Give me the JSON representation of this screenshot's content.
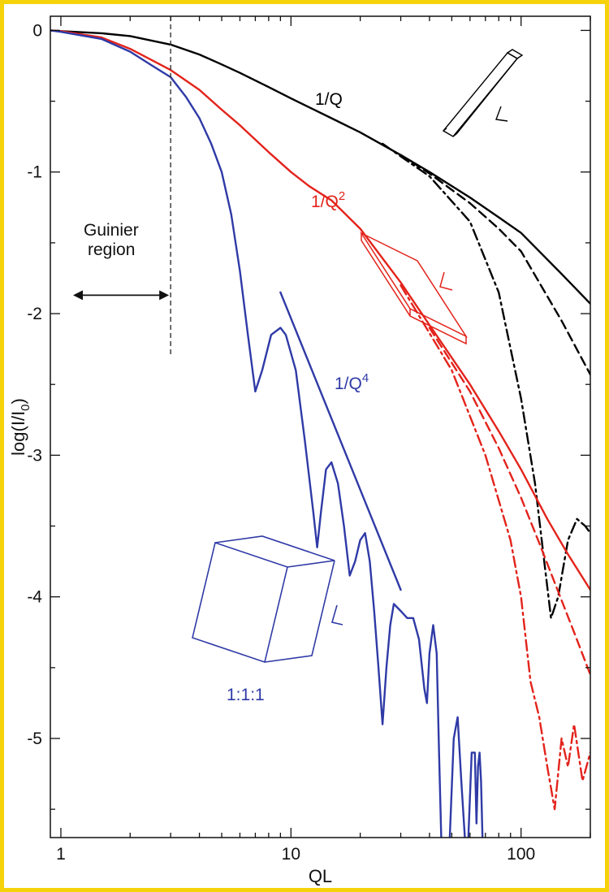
{
  "chart_data": {
    "type": "line",
    "xlabel": "QL",
    "ylabel_main": "log(I/I",
    "ylabel_sub": "0",
    "ylabel_close": ")",
    "xscale": "log",
    "xlim": [
      0.9,
      200
    ],
    "ylim": [
      -5.7,
      0.1
    ],
    "x_ticks": [
      1,
      10,
      100
    ],
    "x_tick_labels": [
      "1",
      "10",
      "100"
    ],
    "y_ticks": [
      0,
      -1,
      -2,
      -3,
      -4,
      -5
    ],
    "y_tick_labels": [
      "0",
      "-1",
      "-2",
      "-3",
      "-4",
      "-5"
    ],
    "grid": false,
    "guinier_cutoff_x": 3,
    "annotations": {
      "guinier_line1": "Guinier",
      "guinier_line2": "region",
      "q1": "1/Q",
      "q2": "1/Q",
      "q2_sup": "2",
      "q4": "1/Q",
      "q4_sup": "4",
      "cube_ratio": "1:1:1",
      "length_symbol": "L"
    },
    "colors": {
      "rod": "#000000",
      "plate": "#e3231b",
      "cube": "#2f3aa6",
      "frame": "#f5d20a"
    },
    "series": [
      {
        "color": "#000000",
        "dash": "solid",
        "points": [
          [
            0.9,
            0
          ],
          [
            1,
            -0.005
          ],
          [
            1.5,
            -0.02
          ],
          [
            2,
            -0.04
          ],
          [
            3,
            -0.1
          ],
          [
            4,
            -0.17
          ],
          [
            5,
            -0.24
          ],
          [
            6,
            -0.3
          ],
          [
            8,
            -0.4
          ],
          [
            10,
            -0.48
          ],
          [
            15,
            -0.62
          ],
          [
            20,
            -0.72
          ],
          [
            30,
            -0.88
          ],
          [
            40,
            -1.0
          ],
          [
            60,
            -1.18
          ],
          [
            80,
            -1.32
          ],
          [
            100,
            -1.43
          ],
          [
            150,
            -1.72
          ],
          [
            200,
            -1.93
          ]
        ]
      },
      {
        "color": "#000000",
        "dash": "dash",
        "points": [
          [
            30,
            -0.88
          ],
          [
            40,
            -1.01
          ],
          [
            60,
            -1.22
          ],
          [
            80,
            -1.4
          ],
          [
            100,
            -1.56
          ],
          [
            150,
            -2.05
          ],
          [
            200,
            -2.43
          ]
        ]
      },
      {
        "color": "#000000",
        "dash": "dashdot",
        "points": [
          [
            25,
            -0.8
          ],
          [
            40,
            -1.03
          ],
          [
            60,
            -1.35
          ],
          [
            80,
            -1.85
          ],
          [
            100,
            -2.6
          ],
          [
            115,
            -3.2
          ],
          [
            125,
            -3.7
          ],
          [
            135,
            -4.15
          ],
          [
            145,
            -4.0
          ],
          [
            160,
            -3.6
          ],
          [
            175,
            -3.45
          ],
          [
            190,
            -3.5
          ],
          [
            200,
            -3.55
          ]
        ]
      },
      {
        "color": "#e3231b",
        "dash": "solid",
        "points": [
          [
            0.9,
            0
          ],
          [
            1,
            -0.005
          ],
          [
            1.5,
            -0.05
          ],
          [
            2,
            -0.13
          ],
          [
            3,
            -0.28
          ],
          [
            4,
            -0.42
          ],
          [
            5,
            -0.56
          ],
          [
            6,
            -0.67
          ],
          [
            8,
            -0.86
          ],
          [
            10,
            -1.0
          ],
          [
            12,
            -1.1
          ],
          [
            15,
            -1.2
          ],
          [
            20,
            -1.4
          ],
          [
            30,
            -1.78
          ],
          [
            40,
            -2.08
          ],
          [
            60,
            -2.5
          ],
          [
            80,
            -2.83
          ],
          [
            100,
            -3.1
          ],
          [
            130,
            -3.45
          ],
          [
            160,
            -3.7
          ],
          [
            200,
            -3.95
          ]
        ]
      },
      {
        "color": "#e3231b",
        "dash": "dash",
        "points": [
          [
            40,
            -2.1
          ],
          [
            60,
            -2.55
          ],
          [
            80,
            -2.95
          ],
          [
            100,
            -3.3
          ],
          [
            120,
            -3.62
          ],
          [
            140,
            -3.9
          ],
          [
            170,
            -4.25
          ],
          [
            200,
            -4.55
          ]
        ]
      },
      {
        "color": "#e3231b",
        "dash": "dashdot",
        "points": [
          [
            30,
            -1.8
          ],
          [
            50,
            -2.4
          ],
          [
            70,
            -3.0
          ],
          [
            90,
            -3.6
          ],
          [
            100,
            -4.0
          ],
          [
            110,
            -4.6
          ],
          [
            120,
            -4.85
          ],
          [
            130,
            -5.2
          ],
          [
            140,
            -5.5
          ],
          [
            150,
            -5.0
          ],
          [
            160,
            -5.2
          ],
          [
            170,
            -4.9
          ],
          [
            185,
            -5.3
          ],
          [
            200,
            -5.1
          ]
        ]
      },
      {
        "color": "#2f3aa6",
        "dash": "solid",
        "points": [
          [
            0.9,
            0
          ],
          [
            1,
            -0.01
          ],
          [
            1.5,
            -0.06
          ],
          [
            2,
            -0.15
          ],
          [
            2.5,
            -0.25
          ],
          [
            3,
            -0.33
          ],
          [
            3.5,
            -0.47
          ],
          [
            4,
            -0.62
          ],
          [
            4.5,
            -0.8
          ],
          [
            5,
            -1.0
          ],
          [
            5.5,
            -1.3
          ],
          [
            6,
            -1.7
          ],
          [
            6.5,
            -2.15
          ],
          [
            7,
            -2.55
          ],
          [
            7.5,
            -2.4
          ],
          [
            8.2,
            -2.15
          ],
          [
            9,
            -2.1
          ],
          [
            9.5,
            -2.15
          ],
          [
            10.5,
            -2.4
          ],
          [
            11.5,
            -2.9
          ],
          [
            12.5,
            -3.4
          ],
          [
            13,
            -3.65
          ],
          [
            13.5,
            -3.4
          ],
          [
            14.2,
            -3.1
          ],
          [
            15,
            -3.05
          ],
          [
            16,
            -3.2
          ],
          [
            17,
            -3.5
          ],
          [
            18,
            -3.85
          ],
          [
            19,
            -3.75
          ],
          [
            20,
            -3.6
          ],
          [
            21,
            -3.55
          ],
          [
            22,
            -3.75
          ],
          [
            23,
            -4.1
          ],
          [
            24,
            -4.5
          ],
          [
            25,
            -4.9
          ],
          [
            26,
            -4.5
          ],
          [
            27,
            -4.2
          ],
          [
            28,
            -4.05
          ],
          [
            30,
            -4.1
          ],
          [
            32,
            -4.15
          ],
          [
            34,
            -4.15
          ],
          [
            36,
            -4.3
          ],
          [
            38,
            -4.65
          ],
          [
            39,
            -4.75
          ],
          [
            40,
            -4.4
          ],
          [
            41.5,
            -4.2
          ],
          [
            43,
            -4.4
          ],
          [
            44,
            -5.1
          ],
          [
            45,
            -5.7
          ]
        ]
      },
      {
        "color": "#2f3aa6",
        "dash": "solid",
        "points": [
          [
            49,
            -5.7
          ],
          [
            51,
            -5.0
          ],
          [
            53,
            -4.85
          ],
          [
            55,
            -5.3
          ],
          [
            57,
            -5.7
          ]
        ]
      },
      {
        "color": "#2f3aa6",
        "dash": "solid",
        "points": [
          [
            59,
            -5.7
          ],
          [
            61,
            -5.1
          ],
          [
            63,
            -5.1
          ],
          [
            64,
            -5.6
          ],
          [
            65,
            -5.2
          ],
          [
            66,
            -5.1
          ],
          [
            67,
            -5.3
          ],
          [
            68,
            -5.7
          ]
        ]
      },
      {
        "color": "#2f3aa6",
        "dash": "solid",
        "points": [
          [
            9,
            -1.85
          ],
          [
            30,
            -3.95
          ]
        ]
      }
    ]
  }
}
